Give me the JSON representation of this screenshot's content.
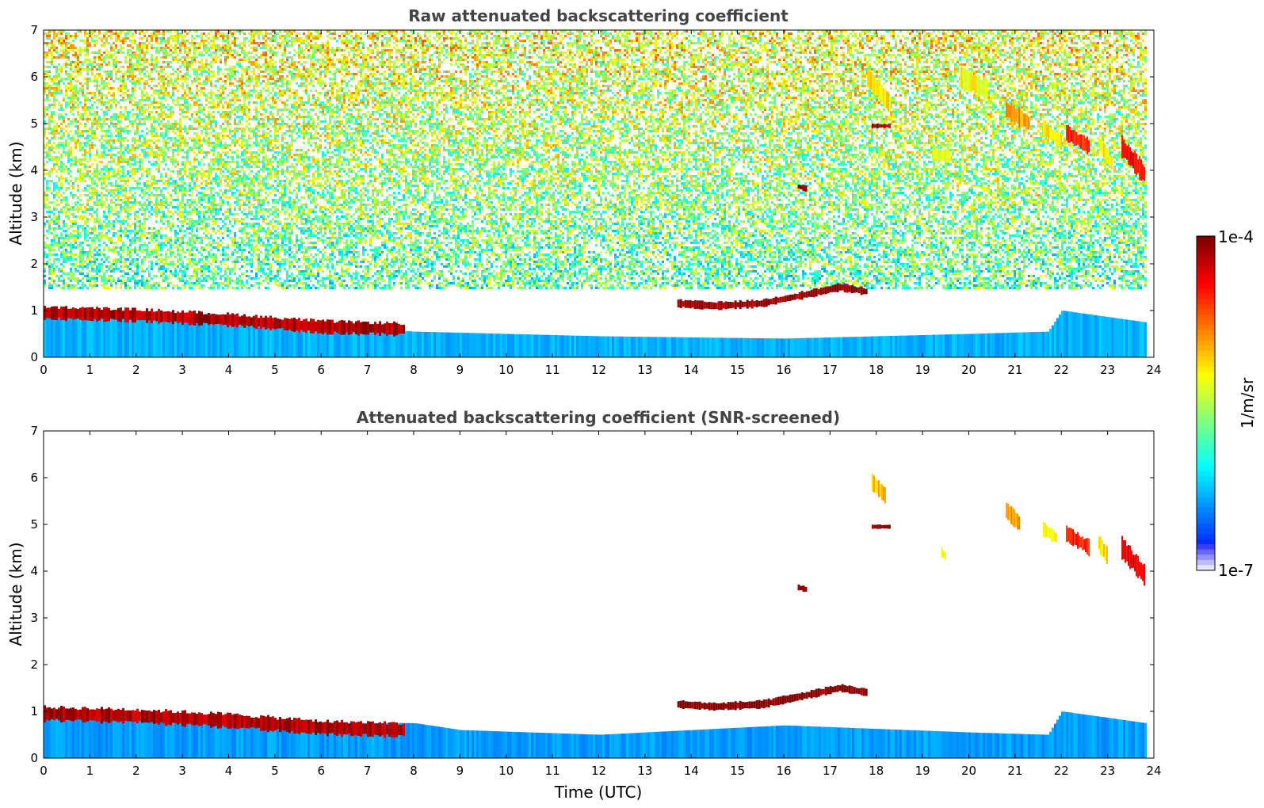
{
  "chart_data": [
    {
      "type": "heatmap",
      "title": "Raw attenuated backscattering coefficient",
      "xlabel": "",
      "ylabel": "Altitude (km)",
      "xlim": [
        0,
        24
      ],
      "ylim": [
        0,
        7
      ],
      "x_ticks": [
        "0",
        "1",
        "2",
        "3",
        "4",
        "5",
        "6",
        "7",
        "8",
        "9",
        "10",
        "11",
        "12",
        "13",
        "14",
        "15",
        "16",
        "17",
        "18",
        "19",
        "20",
        "21",
        "22",
        "23",
        "24"
      ],
      "y_ticks": [
        "0",
        "1",
        "2",
        "3",
        "4",
        "5",
        "6",
        "7"
      ],
      "features": [
        {
          "kind": "noise",
          "x": [
            0,
            23.8
          ],
          "y": [
            1.5,
            7
          ],
          "level": 0.45,
          "top_level": 0.62
        },
        {
          "kind": "boundary_layer",
          "x": [
            0,
            23.8
          ],
          "top": [
            [
              0,
              1.05
            ],
            [
              2,
              0.95
            ],
            [
              5,
              0.7
            ],
            [
              8,
              0.55
            ],
            [
              12,
              0.45
            ],
            [
              16,
              0.4
            ],
            [
              20,
              0.5
            ],
            [
              21.7,
              0.55
            ],
            [
              22,
              1.0
            ],
            [
              23.8,
              0.75
            ]
          ],
          "level": 0.3
        },
        {
          "kind": "aerosol_layer",
          "x": [
            0,
            7.8
          ],
          "center": [
            [
              0,
              0.95
            ],
            [
              2,
              0.9
            ],
            [
              4,
              0.8
            ],
            [
              6,
              0.65
            ],
            [
              7.8,
              0.6
            ]
          ],
          "thickness": 0.25,
          "level": 0.95
        },
        {
          "kind": "cloud",
          "x": [
            13.7,
            17.8
          ],
          "center": [
            [
              13.7,
              1.15
            ],
            [
              14.5,
              1.1
            ],
            [
              15.5,
              1.15
            ],
            [
              16.5,
              1.35
            ],
            [
              17.2,
              1.5
            ],
            [
              17.8,
              1.4
            ]
          ],
          "thickness": 0.15,
          "level": 0.98
        },
        {
          "kind": "cloud",
          "x": [
            16.3,
            16.5
          ],
          "center": [
            [
              16.3,
              3.65
            ],
            [
              16.5,
              3.6
            ]
          ],
          "thickness": 0.12,
          "level": 0.98
        },
        {
          "kind": "cloud",
          "x": [
            17.9,
            18.3
          ],
          "center": [
            [
              17.9,
              4.95
            ],
            [
              18.3,
              4.95
            ]
          ],
          "thickness": 0.08,
          "level": 0.98
        },
        {
          "kind": "cirrus",
          "x": [
            17.8,
            18.3
          ],
          "center": [
            [
              17.8,
              6.0
            ],
            [
              18.3,
              5.4
            ]
          ],
          "thickness": 0.35,
          "level": 0.65
        },
        {
          "kind": "cirrus",
          "x": [
            19.2,
            19.6
          ],
          "center": [
            [
              19.2,
              4.35
            ],
            [
              19.6,
              4.3
            ]
          ],
          "thickness": 0.25,
          "level": 0.6
        },
        {
          "kind": "cirrus",
          "x": [
            19.8,
            20.4
          ],
          "center": [
            [
              19.8,
              6.0
            ],
            [
              20.4,
              5.7
            ]
          ],
          "thickness": 0.4,
          "level": 0.62
        },
        {
          "kind": "cirrus",
          "x": [
            20.8,
            21.3
          ],
          "center": [
            [
              20.8,
              5.3
            ],
            [
              21.3,
              5.0
            ]
          ],
          "thickness": 0.35,
          "level": 0.72
        },
        {
          "kind": "cirrus",
          "x": [
            21.6,
            22.0
          ],
          "center": [
            [
              21.6,
              4.9
            ],
            [
              22.0,
              4.6
            ]
          ],
          "thickness": 0.3,
          "level": 0.65
        },
        {
          "kind": "cirrus",
          "x": [
            22.1,
            22.6
          ],
          "center": [
            [
              22.1,
              4.8
            ],
            [
              22.6,
              4.5
            ]
          ],
          "thickness": 0.3,
          "level": 0.85
        },
        {
          "kind": "cirrus",
          "x": [
            22.8,
            23.1
          ],
          "center": [
            [
              22.8,
              4.6
            ],
            [
              23.1,
              4.1
            ]
          ],
          "thickness": 0.35,
          "level": 0.65
        },
        {
          "kind": "cirrus",
          "x": [
            23.3,
            23.8
          ],
          "center": [
            [
              23.3,
              4.5
            ],
            [
              23.8,
              3.9
            ]
          ],
          "thickness": 0.4,
          "level": 0.88
        }
      ]
    },
    {
      "type": "heatmap",
      "title": "Attenuated backscattering coefficient (SNR-screened)",
      "xlabel": "Time (UTC)",
      "ylabel": "Altitude (km)",
      "xlim": [
        0,
        24
      ],
      "ylim": [
        0,
        7
      ],
      "x_ticks": [
        "0",
        "1",
        "2",
        "3",
        "4",
        "5",
        "6",
        "7",
        "8",
        "9",
        "10",
        "11",
        "12",
        "13",
        "14",
        "15",
        "16",
        "17",
        "18",
        "19",
        "20",
        "21",
        "22",
        "23",
        "24"
      ],
      "y_ticks": [
        "0",
        "1",
        "2",
        "3",
        "4",
        "5",
        "6",
        "7"
      ],
      "features": [
        {
          "kind": "boundary_layer",
          "x": [
            0,
            23.8
          ],
          "top": [
            [
              0,
              1.05
            ],
            [
              2,
              0.95
            ],
            [
              5,
              0.75
            ],
            [
              8,
              0.75
            ],
            [
              9,
              0.6
            ],
            [
              12,
              0.5
            ],
            [
              14,
              0.6
            ],
            [
              16,
              0.7
            ],
            [
              20,
              0.55
            ],
            [
              21.7,
              0.5
            ],
            [
              22,
              1.0
            ],
            [
              23.8,
              0.75
            ]
          ],
          "level": 0.28
        },
        {
          "kind": "aerosol_layer",
          "x": [
            0,
            7.8
          ],
          "center": [
            [
              0,
              0.95
            ],
            [
              2,
              0.9
            ],
            [
              4,
              0.8
            ],
            [
              6,
              0.65
            ],
            [
              7.8,
              0.6
            ]
          ],
          "thickness": 0.28,
          "level": 0.95
        },
        {
          "kind": "cloud",
          "x": [
            13.7,
            17.8
          ],
          "center": [
            [
              13.7,
              1.15
            ],
            [
              14.5,
              1.1
            ],
            [
              15.5,
              1.15
            ],
            [
              16.5,
              1.35
            ],
            [
              17.2,
              1.5
            ],
            [
              17.8,
              1.4
            ]
          ],
          "thickness": 0.15,
          "level": 1.0
        },
        {
          "kind": "cloud",
          "x": [
            16.3,
            16.5
          ],
          "center": [
            [
              16.3,
              3.65
            ],
            [
              16.5,
              3.6
            ]
          ],
          "thickness": 0.12,
          "level": 1.0
        },
        {
          "kind": "cloud",
          "x": [
            17.9,
            18.3
          ],
          "center": [
            [
              17.9,
              4.95
            ],
            [
              18.3,
              4.95
            ]
          ],
          "thickness": 0.08,
          "level": 1.0
        },
        {
          "kind": "cirrus",
          "x": [
            17.9,
            18.2
          ],
          "center": [
            [
              17.9,
              5.9
            ],
            [
              18.2,
              5.6
            ]
          ],
          "thickness": 0.3,
          "level": 0.7
        },
        {
          "kind": "cirrus",
          "x": [
            19.4,
            19.5
          ],
          "center": [
            [
              19.4,
              4.4
            ],
            [
              19.5,
              4.3
            ]
          ],
          "thickness": 0.2,
          "level": 0.62
        },
        {
          "kind": "cirrus",
          "x": [
            20.8,
            21.1
          ],
          "center": [
            [
              20.8,
              5.3
            ],
            [
              21.1,
              5.0
            ]
          ],
          "thickness": 0.3,
          "level": 0.72
        },
        {
          "kind": "cirrus",
          "x": [
            21.6,
            21.9
          ],
          "center": [
            [
              21.6,
              4.9
            ],
            [
              21.9,
              4.7
            ]
          ],
          "thickness": 0.25,
          "level": 0.62
        },
        {
          "kind": "cirrus",
          "x": [
            22.1,
            22.6
          ],
          "center": [
            [
              22.1,
              4.8
            ],
            [
              22.6,
              4.5
            ]
          ],
          "thickness": 0.3,
          "level": 0.85
        },
        {
          "kind": "cirrus",
          "x": [
            22.8,
            23.0
          ],
          "center": [
            [
              22.8,
              4.6
            ],
            [
              23.0,
              4.3
            ]
          ],
          "thickness": 0.3,
          "level": 0.65
        },
        {
          "kind": "cirrus",
          "x": [
            23.3,
            23.8
          ],
          "center": [
            [
              23.3,
              4.5
            ],
            [
              23.8,
              3.9
            ]
          ],
          "thickness": 0.4,
          "level": 0.9
        }
      ]
    }
  ],
  "colorbar": {
    "label": "1/m/sr",
    "top_label": "1e-4",
    "bottom_label": "1e-7",
    "range": [
      1e-07,
      0.0001
    ],
    "scale": "log",
    "colormap": "jet"
  }
}
